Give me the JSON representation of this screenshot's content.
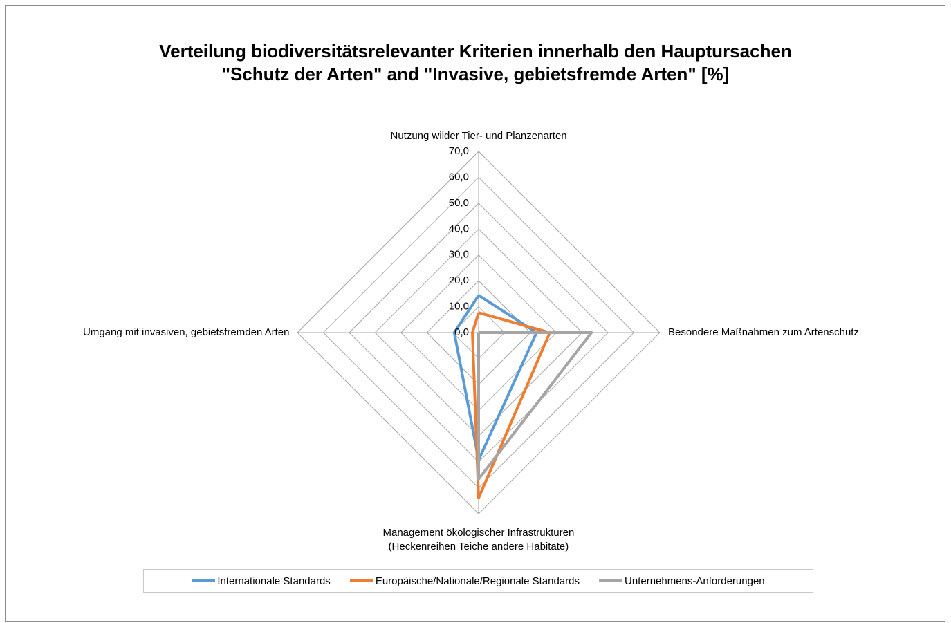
{
  "chart_data": {
    "type": "radar",
    "title": "Verteilung biodiversitätsrelevanter Kriterien innerhalb den Hauptursachen \"Schutz der Arten\" and \"Invasive, gebietsfremde Arten\" [%]",
    "categories": [
      "Nutzung wilder Tier- und Planzenarten",
      "Besondere Maßnahmen zum Artenschutz",
      "Management ökologischer Infrastrukturen\n(Heckenreihen Teiche andere Habitate)",
      "Umgang mit invasiven, gebietsfremden Arten"
    ],
    "series": [
      {
        "name": "Internationale Standards",
        "color": "#5b9bd5",
        "values": [
          14.4,
          22.4,
          49.2,
          9.4
        ]
      },
      {
        "name": "Europäische/Nationale/Regionale Standards",
        "color": "#ed7d31",
        "values": [
          7.7,
          27.5,
          63.9,
          2.4
        ]
      },
      {
        "name": "Unternehmens-Anforderungen",
        "color": "#a5a5a5",
        "values": [
          0,
          43.6,
          56.6,
          0
        ]
      }
    ],
    "ylim": [
      0,
      70
    ],
    "yticks": [
      {
        "value": 0,
        "label": "0,0"
      },
      {
        "value": 10,
        "label": "10,0"
      },
      {
        "value": 20,
        "label": "20,0"
      },
      {
        "value": 30,
        "label": "30,0"
      },
      {
        "value": 40,
        "label": "40,0"
      },
      {
        "value": 50,
        "label": "50,0"
      },
      {
        "value": 60,
        "label": "60,0"
      },
      {
        "value": 70,
        "label": "70,0"
      }
    ],
    "grid": true,
    "legend": "bottom"
  }
}
